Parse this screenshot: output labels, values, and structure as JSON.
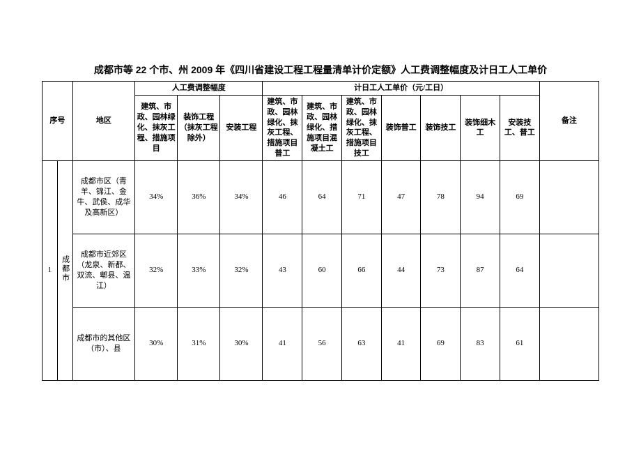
{
  "title": "成都市等 22 个市、州 2009 年《四川省建设工程工程量清单计价定额》人工费调整幅度及计日工人工单价",
  "headers": {
    "seq": "序号",
    "area": "地区",
    "group_adj": "人工费调整幅度",
    "group_price": "计日工人工单价（元/工日）",
    "remark": "备注",
    "adj_a": "建筑、市政、园林绿化、抹灰工程、措施项目",
    "adj_b": "装饰工程（抹灰工程除外）",
    "adj_c": "安装工程",
    "price_a": "建筑、市政、园林绿化、抹灰工程、措施项目普工",
    "price_b": "建筑、市政、园林绿化、措施项目混凝土工",
    "price_c": "建筑、市政、园林绿化、抹灰工程、措施项目技工",
    "price_d": "装饰普工",
    "price_e": "装饰技工",
    "price_f": "装饰细木工",
    "price_g": "安装技工、普工"
  },
  "city": {
    "seq": "1",
    "name": "成都市"
  },
  "rows": [
    {
      "area": "成都市区（青羊、锦江、金牛、武侯、成华及高新区）",
      "adj_a": "34%",
      "adj_b": "36%",
      "adj_c": "34%",
      "p_a": "46",
      "p_b": "64",
      "p_c": "71",
      "p_d": "47",
      "p_e": "78",
      "p_f": "94",
      "p_g": "69",
      "remark": ""
    },
    {
      "area": "成都市近郊区（龙泉、新都、双流、郫县、温江）",
      "adj_a": "32%",
      "adj_b": "33%",
      "adj_c": "32%",
      "p_a": "43",
      "p_b": "60",
      "p_c": "66",
      "p_d": "44",
      "p_e": "73",
      "p_f": "87",
      "p_g": "64",
      "remark": ""
    },
    {
      "area": "成都市的其他区（市）、县",
      "adj_a": "30%",
      "adj_b": "31%",
      "adj_c": "30%",
      "p_a": "41",
      "p_b": "56",
      "p_c": "63",
      "p_d": "41",
      "p_e": "69",
      "p_f": "83",
      "p_g": "61",
      "remark": ""
    }
  ]
}
